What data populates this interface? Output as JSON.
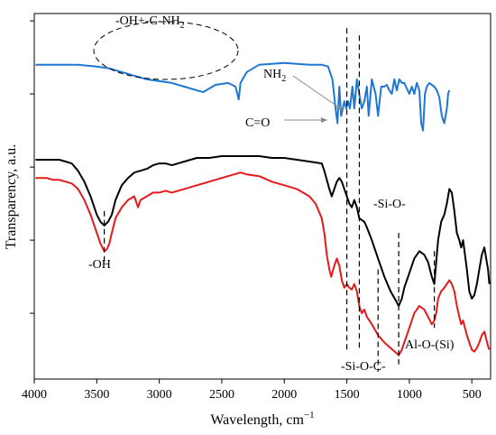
{
  "chart_data": {
    "type": "line",
    "xlabel": "Wavelength, cm",
    "xlabel_sup": "−1",
    "ylabel": "Transparency, a.u.",
    "xlim": [
      4000,
      350
    ],
    "x_ticks": [
      "4000",
      "3500",
      "3000",
      "2500",
      "2000",
      "1500",
      "1000",
      "500"
    ],
    "y_tick_count": 5,
    "grid": false,
    "legend": "none",
    "series": [
      {
        "color": "#1f77d4",
        "points": [
          [
            3990,
            86
          ],
          [
            3800,
            86
          ],
          [
            3650,
            86
          ],
          [
            3500,
            85.5
          ],
          [
            3400,
            85
          ],
          [
            3300,
            84
          ],
          [
            3200,
            83
          ],
          [
            3100,
            82
          ],
          [
            3000,
            81.5
          ],
          [
            2900,
            81
          ],
          [
            2800,
            80
          ],
          [
            2700,
            79
          ],
          [
            2650,
            78.5
          ],
          [
            2550,
            80.5
          ],
          [
            2450,
            81
          ],
          [
            2390,
            80
          ],
          [
            2365,
            76.5
          ],
          [
            2350,
            81
          ],
          [
            2300,
            84
          ],
          [
            2200,
            86
          ],
          [
            2000,
            86.5
          ],
          [
            1800,
            86
          ],
          [
            1700,
            86
          ],
          [
            1650,
            85.5
          ],
          [
            1615,
            82
          ],
          [
            1590,
            74
          ],
          [
            1575,
            70
          ],
          [
            1560,
            80
          ],
          [
            1545,
            72
          ],
          [
            1520,
            76
          ],
          [
            1505,
            74
          ],
          [
            1490,
            76
          ],
          [
            1475,
            74
          ],
          [
            1455,
            80
          ],
          [
            1440,
            74
          ],
          [
            1420,
            82
          ],
          [
            1400,
            78
          ],
          [
            1380,
            74
          ],
          [
            1360,
            76
          ],
          [
            1340,
            80
          ],
          [
            1325,
            72
          ],
          [
            1300,
            82
          ],
          [
            1270,
            78
          ],
          [
            1250,
            72
          ],
          [
            1225,
            80
          ],
          [
            1200,
            80
          ],
          [
            1180,
            80.5
          ],
          [
            1160,
            79
          ],
          [
            1140,
            78
          ],
          [
            1120,
            82
          ],
          [
            1100,
            79
          ],
          [
            1080,
            82
          ],
          [
            1060,
            81
          ],
          [
            1040,
            81
          ],
          [
            1020,
            79.5
          ],
          [
            1000,
            78
          ],
          [
            980,
            80
          ],
          [
            960,
            78
          ],
          [
            940,
            81
          ],
          [
            920,
            79
          ],
          [
            905,
            70
          ],
          [
            890,
            68
          ],
          [
            875,
            78
          ],
          [
            860,
            80
          ],
          [
            840,
            81
          ],
          [
            820,
            80.5
          ],
          [
            800,
            80
          ],
          [
            780,
            79
          ],
          [
            760,
            77
          ],
          [
            740,
            72
          ],
          [
            720,
            70
          ],
          [
            700,
            74
          ],
          [
            690,
            78
          ],
          [
            680,
            79
          ]
        ]
      },
      {
        "color": "#000000",
        "points": [
          [
            3990,
            60
          ],
          [
            3900,
            60
          ],
          [
            3800,
            60
          ],
          [
            3750,
            59.5
          ],
          [
            3700,
            59
          ],
          [
            3650,
            57
          ],
          [
            3600,
            54
          ],
          [
            3550,
            50
          ],
          [
            3500,
            45
          ],
          [
            3470,
            43
          ],
          [
            3440,
            42
          ],
          [
            3410,
            43
          ],
          [
            3380,
            45
          ],
          [
            3350,
            49
          ],
          [
            3300,
            53
          ],
          [
            3250,
            55
          ],
          [
            3200,
            56.5
          ],
          [
            3150,
            57
          ],
          [
            3100,
            57.5
          ],
          [
            3050,
            58.5
          ],
          [
            3000,
            59
          ],
          [
            2950,
            59
          ],
          [
            2900,
            58.5
          ],
          [
            2850,
            59
          ],
          [
            2800,
            59.5
          ],
          [
            2700,
            60.5
          ],
          [
            2600,
            60.5
          ],
          [
            2500,
            61
          ],
          [
            2400,
            61
          ],
          [
            2300,
            61
          ],
          [
            2200,
            61
          ],
          [
            2100,
            60.5
          ],
          [
            2000,
            60.5
          ],
          [
            1900,
            60
          ],
          [
            1800,
            59.5
          ],
          [
            1700,
            59
          ],
          [
            1680,
            57
          ],
          [
            1640,
            52
          ],
          [
            1620,
            50
          ],
          [
            1600,
            52
          ],
          [
            1580,
            54
          ],
          [
            1560,
            55
          ],
          [
            1540,
            54
          ],
          [
            1520,
            52
          ],
          [
            1500,
            50
          ],
          [
            1480,
            48
          ],
          [
            1460,
            47
          ],
          [
            1440,
            49
          ],
          [
            1420,
            47
          ],
          [
            1400,
            44
          ],
          [
            1380,
            43.5
          ],
          [
            1360,
            43
          ],
          [
            1340,
            41.5
          ],
          [
            1300,
            38
          ],
          [
            1250,
            33
          ],
          [
            1200,
            28
          ],
          [
            1150,
            24
          ],
          [
            1100,
            21
          ],
          [
            1085,
            20
          ],
          [
            1060,
            22
          ],
          [
            1040,
            25
          ],
          [
            1000,
            29
          ],
          [
            960,
            33
          ],
          [
            920,
            35
          ],
          [
            880,
            34
          ],
          [
            850,
            32
          ],
          [
            820,
            28
          ],
          [
            800,
            26
          ],
          [
            785,
            32
          ],
          [
            770,
            38
          ],
          [
            745,
            43
          ],
          [
            720,
            45
          ],
          [
            700,
            48
          ],
          [
            680,
            52
          ],
          [
            660,
            51
          ],
          [
            640,
            46
          ],
          [
            620,
            40
          ],
          [
            600,
            38
          ],
          [
            585,
            36
          ],
          [
            570,
            38
          ],
          [
            555,
            34
          ],
          [
            540,
            30
          ],
          [
            520,
            24
          ],
          [
            500,
            22
          ],
          [
            480,
            23
          ],
          [
            460,
            26
          ],
          [
            440,
            30
          ],
          [
            420,
            34
          ],
          [
            400,
            36
          ],
          [
            385,
            33
          ],
          [
            370,
            30
          ],
          [
            360,
            26
          ]
        ]
      },
      {
        "color": "#e41a1c",
        "points": [
          [
            3990,
            55
          ],
          [
            3900,
            55
          ],
          [
            3850,
            54.5
          ],
          [
            3800,
            54.5
          ],
          [
            3750,
            54
          ],
          [
            3700,
            53.5
          ],
          [
            3650,
            52
          ],
          [
            3600,
            49
          ],
          [
            3550,
            45
          ],
          [
            3500,
            40
          ],
          [
            3470,
            37
          ],
          [
            3440,
            35
          ],
          [
            3420,
            35.5
          ],
          [
            3400,
            37
          ],
          [
            3380,
            40
          ],
          [
            3350,
            44
          ],
          [
            3300,
            47
          ],
          [
            3250,
            49
          ],
          [
            3200,
            50
          ],
          [
            3170,
            47
          ],
          [
            3150,
            49
          ],
          [
            3100,
            50
          ],
          [
            3050,
            51
          ],
          [
            3000,
            51
          ],
          [
            2950,
            51.5
          ],
          [
            2900,
            51
          ],
          [
            2850,
            51.5
          ],
          [
            2800,
            52
          ],
          [
            2700,
            53
          ],
          [
            2600,
            54
          ],
          [
            2500,
            55
          ],
          [
            2400,
            56
          ],
          [
            2350,
            56.5
          ],
          [
            2300,
            56
          ],
          [
            2200,
            55.5
          ],
          [
            2100,
            54
          ],
          [
            2000,
            53
          ],
          [
            1900,
            52
          ],
          [
            1800,
            50
          ],
          [
            1750,
            48
          ],
          [
            1700,
            44
          ],
          [
            1680,
            40
          ],
          [
            1660,
            34
          ],
          [
            1640,
            30
          ],
          [
            1625,
            28
          ],
          [
            1600,
            31
          ],
          [
            1580,
            33
          ],
          [
            1560,
            31
          ],
          [
            1540,
            27
          ],
          [
            1520,
            25
          ],
          [
            1500,
            26
          ],
          [
            1480,
            25
          ],
          [
            1460,
            24.5
          ],
          [
            1440,
            26
          ],
          [
            1420,
            24
          ],
          [
            1400,
            20
          ],
          [
            1380,
            18
          ],
          [
            1360,
            19
          ],
          [
            1340,
            17
          ],
          [
            1300,
            15
          ],
          [
            1250,
            12
          ],
          [
            1200,
            10
          ],
          [
            1150,
            8.5
          ],
          [
            1100,
            7
          ],
          [
            1085,
            6.5
          ],
          [
            1060,
            8
          ],
          [
            1040,
            10
          ],
          [
            1000,
            14
          ],
          [
            960,
            18
          ],
          [
            920,
            20
          ],
          [
            880,
            19
          ],
          [
            850,
            17
          ],
          [
            820,
            15
          ],
          [
            800,
            16
          ],
          [
            785,
            18
          ],
          [
            770,
            22
          ],
          [
            745,
            24
          ],
          [
            720,
            25
          ],
          [
            700,
            26
          ],
          [
            680,
            27
          ],
          [
            660,
            26
          ],
          [
            640,
            24
          ],
          [
            620,
            20
          ],
          [
            600,
            17
          ],
          [
            585,
            15
          ],
          [
            570,
            16
          ],
          [
            555,
            14
          ],
          [
            540,
            12
          ],
          [
            520,
            10
          ],
          [
            500,
            8
          ],
          [
            480,
            7.5
          ],
          [
            460,
            8.5
          ],
          [
            440,
            10
          ],
          [
            420,
            12
          ],
          [
            400,
            13
          ],
          [
            385,
            11
          ],
          [
            370,
            9
          ],
          [
            360,
            8
          ]
        ]
      }
    ],
    "ref_lines": [
      {
        "x": 3440,
        "y_top": 46,
        "y_bottom": 32
      },
      {
        "x": 1500,
        "y_top": 96,
        "y_bottom": 8
      },
      {
        "x": 1400,
        "y_top": 94,
        "y_bottom": 8
      },
      {
        "x": 1250,
        "y_top": 30,
        "y_bottom": 2
      },
      {
        "x": 1085,
        "y_top": 40,
        "y_bottom": 4
      },
      {
        "x": 800,
        "y_top": 35,
        "y_bottom": 14
      }
    ]
  },
  "annotations": {
    "oh_nh2_prefix": "-OH+-C-NH",
    "oh_nh2_sub": "2",
    "nh2_prefix": "NH",
    "nh2_sub": "2",
    "co": "C=O",
    "oh": "-OH",
    "sio": "-Si-O-",
    "sioc": "-Si-O-C-",
    "alosi": "Al-O-(Si)"
  }
}
